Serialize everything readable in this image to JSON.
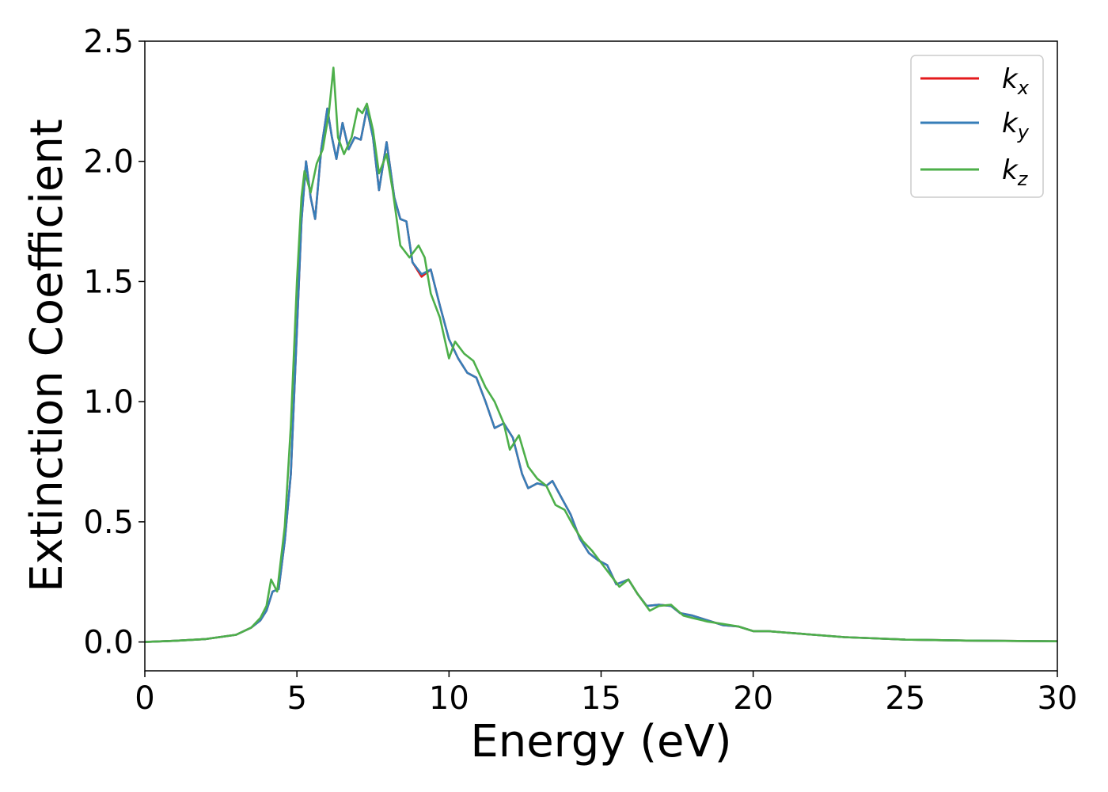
{
  "chart_data": {
    "type": "line",
    "xlabel": "Energy (eV)",
    "ylabel": "Extinction Coefficient",
    "xlim": [
      0,
      30
    ],
    "ylim": [
      -0.12,
      2.5
    ],
    "xticks": [
      0,
      5,
      10,
      15,
      20,
      25,
      30
    ],
    "xtick_labels": [
      "0",
      "5",
      "10",
      "15",
      "20",
      "25",
      "30"
    ],
    "yticks": [
      0.0,
      0.5,
      1.0,
      1.5,
      2.0,
      2.5
    ],
    "ytick_labels": [
      "0.0",
      "0.5",
      "1.0",
      "1.5",
      "2.0",
      "2.5"
    ],
    "grid": false,
    "legend_position": "top-right",
    "series": [
      {
        "name": "k_x",
        "label_main": "k",
        "label_sub": "x",
        "color": "#e41a1c",
        "points": [
          [
            0,
            0.0
          ],
          [
            1,
            0.005
          ],
          [
            2,
            0.012
          ],
          [
            3,
            0.03
          ],
          [
            3.5,
            0.06
          ],
          [
            3.8,
            0.09
          ],
          [
            4.0,
            0.13
          ],
          [
            4.2,
            0.21
          ],
          [
            4.4,
            0.22
          ],
          [
            4.6,
            0.42
          ],
          [
            4.8,
            0.7
          ],
          [
            5.0,
            1.3
          ],
          [
            5.15,
            1.75
          ],
          [
            5.3,
            2.0
          ],
          [
            5.45,
            1.85
          ],
          [
            5.6,
            1.76
          ],
          [
            5.8,
            2.05
          ],
          [
            6.0,
            2.22
          ],
          [
            6.15,
            2.1
          ],
          [
            6.3,
            2.01
          ],
          [
            6.5,
            2.16
          ],
          [
            6.7,
            2.05
          ],
          [
            6.9,
            2.1
          ],
          [
            7.1,
            2.09
          ],
          [
            7.3,
            2.22
          ],
          [
            7.5,
            2.1
          ],
          [
            7.7,
            1.88
          ],
          [
            7.95,
            2.08
          ],
          [
            8.2,
            1.85
          ],
          [
            8.4,
            1.76
          ],
          [
            8.6,
            1.75
          ],
          [
            8.8,
            1.58
          ],
          [
            9.1,
            1.52
          ],
          [
            9.4,
            1.55
          ],
          [
            9.7,
            1.4
          ],
          [
            10.0,
            1.26
          ],
          [
            10.3,
            1.18
          ],
          [
            10.6,
            1.12
          ],
          [
            10.9,
            1.1
          ],
          [
            11.2,
            1.0
          ],
          [
            11.5,
            0.89
          ],
          [
            11.8,
            0.91
          ],
          [
            12.1,
            0.85
          ],
          [
            12.4,
            0.7
          ],
          [
            12.6,
            0.64
          ],
          [
            12.9,
            0.66
          ],
          [
            13.2,
            0.65
          ],
          [
            13.4,
            0.67
          ],
          [
            13.7,
            0.6
          ],
          [
            14.0,
            0.53
          ],
          [
            14.3,
            0.43
          ],
          [
            14.6,
            0.37
          ],
          [
            14.9,
            0.34
          ],
          [
            15.2,
            0.32
          ],
          [
            15.5,
            0.24
          ],
          [
            15.9,
            0.26
          ],
          [
            16.2,
            0.2
          ],
          [
            16.5,
            0.15
          ],
          [
            16.9,
            0.155
          ],
          [
            17.3,
            0.15
          ],
          [
            17.6,
            0.12
          ],
          [
            18.0,
            0.11
          ],
          [
            18.5,
            0.09
          ],
          [
            19.0,
            0.07
          ],
          [
            19.5,
            0.065
          ],
          [
            20.0,
            0.045
          ],
          [
            20.5,
            0.045
          ],
          [
            21.0,
            0.04
          ],
          [
            22.0,
            0.03
          ],
          [
            23.0,
            0.02
          ],
          [
            24.0,
            0.015
          ],
          [
            25.0,
            0.01
          ],
          [
            27.0,
            0.006
          ],
          [
            30.0,
            0.003
          ]
        ]
      },
      {
        "name": "k_y",
        "label_main": "k",
        "label_sub": "y",
        "color": "#377eb8",
        "points": [
          [
            0,
            0.0
          ],
          [
            1,
            0.005
          ],
          [
            2,
            0.012
          ],
          [
            3,
            0.03
          ],
          [
            3.5,
            0.06
          ],
          [
            3.8,
            0.09
          ],
          [
            4.0,
            0.13
          ],
          [
            4.2,
            0.21
          ],
          [
            4.4,
            0.22
          ],
          [
            4.6,
            0.42
          ],
          [
            4.8,
            0.7
          ],
          [
            5.0,
            1.3
          ],
          [
            5.15,
            1.75
          ],
          [
            5.3,
            2.0
          ],
          [
            5.45,
            1.85
          ],
          [
            5.6,
            1.76
          ],
          [
            5.8,
            2.05
          ],
          [
            6.0,
            2.22
          ],
          [
            6.15,
            2.1
          ],
          [
            6.3,
            2.01
          ],
          [
            6.5,
            2.16
          ],
          [
            6.7,
            2.05
          ],
          [
            6.9,
            2.1
          ],
          [
            7.1,
            2.09
          ],
          [
            7.3,
            2.22
          ],
          [
            7.5,
            2.1
          ],
          [
            7.7,
            1.88
          ],
          [
            7.95,
            2.08
          ],
          [
            8.2,
            1.85
          ],
          [
            8.4,
            1.76
          ],
          [
            8.6,
            1.75
          ],
          [
            8.8,
            1.58
          ],
          [
            9.1,
            1.53
          ],
          [
            9.4,
            1.55
          ],
          [
            9.7,
            1.4
          ],
          [
            10.0,
            1.26
          ],
          [
            10.3,
            1.18
          ],
          [
            10.6,
            1.12
          ],
          [
            10.9,
            1.1
          ],
          [
            11.2,
            1.0
          ],
          [
            11.5,
            0.89
          ],
          [
            11.8,
            0.91
          ],
          [
            12.1,
            0.85
          ],
          [
            12.4,
            0.7
          ],
          [
            12.6,
            0.64
          ],
          [
            12.9,
            0.66
          ],
          [
            13.2,
            0.65
          ],
          [
            13.4,
            0.67
          ],
          [
            13.7,
            0.6
          ],
          [
            14.0,
            0.53
          ],
          [
            14.3,
            0.43
          ],
          [
            14.6,
            0.37
          ],
          [
            14.9,
            0.34
          ],
          [
            15.2,
            0.32
          ],
          [
            15.5,
            0.24
          ],
          [
            15.9,
            0.26
          ],
          [
            16.2,
            0.2
          ],
          [
            16.5,
            0.15
          ],
          [
            16.9,
            0.155
          ],
          [
            17.3,
            0.15
          ],
          [
            17.6,
            0.12
          ],
          [
            18.0,
            0.11
          ],
          [
            18.5,
            0.09
          ],
          [
            19.0,
            0.07
          ],
          [
            19.5,
            0.065
          ],
          [
            20.0,
            0.045
          ],
          [
            20.5,
            0.045
          ],
          [
            21.0,
            0.04
          ],
          [
            22.0,
            0.03
          ],
          [
            23.0,
            0.02
          ],
          [
            24.0,
            0.015
          ],
          [
            25.0,
            0.01
          ],
          [
            27.0,
            0.006
          ],
          [
            30.0,
            0.003
          ]
        ]
      },
      {
        "name": "k_z",
        "label_main": "k",
        "label_sub": "z",
        "color": "#4daf4a",
        "points": [
          [
            0,
            0.0
          ],
          [
            1,
            0.005
          ],
          [
            2,
            0.012
          ],
          [
            3,
            0.03
          ],
          [
            3.5,
            0.06
          ],
          [
            3.8,
            0.1
          ],
          [
            4.0,
            0.15
          ],
          [
            4.15,
            0.26
          ],
          [
            4.35,
            0.21
          ],
          [
            4.6,
            0.48
          ],
          [
            4.8,
            0.9
          ],
          [
            5.0,
            1.5
          ],
          [
            5.15,
            1.85
          ],
          [
            5.25,
            1.96
          ],
          [
            5.45,
            1.87
          ],
          [
            5.65,
            1.99
          ],
          [
            5.85,
            2.05
          ],
          [
            6.05,
            2.2
          ],
          [
            6.2,
            2.39
          ],
          [
            6.35,
            2.1
          ],
          [
            6.55,
            2.03
          ],
          [
            6.8,
            2.1
          ],
          [
            7.0,
            2.22
          ],
          [
            7.15,
            2.2
          ],
          [
            7.3,
            2.24
          ],
          [
            7.5,
            2.13
          ],
          [
            7.7,
            1.95
          ],
          [
            7.95,
            2.03
          ],
          [
            8.15,
            1.88
          ],
          [
            8.4,
            1.65
          ],
          [
            8.7,
            1.6
          ],
          [
            9.0,
            1.65
          ],
          [
            9.2,
            1.6
          ],
          [
            9.4,
            1.45
          ],
          [
            9.7,
            1.35
          ],
          [
            10.0,
            1.18
          ],
          [
            10.2,
            1.25
          ],
          [
            10.5,
            1.2
          ],
          [
            10.8,
            1.17
          ],
          [
            11.2,
            1.06
          ],
          [
            11.5,
            1.0
          ],
          [
            11.8,
            0.91
          ],
          [
            12.0,
            0.8
          ],
          [
            12.3,
            0.86
          ],
          [
            12.6,
            0.73
          ],
          [
            12.9,
            0.68
          ],
          [
            13.2,
            0.65
          ],
          [
            13.5,
            0.57
          ],
          [
            13.8,
            0.55
          ],
          [
            14.1,
            0.48
          ],
          [
            14.4,
            0.42
          ],
          [
            14.7,
            0.38
          ],
          [
            15.0,
            0.33
          ],
          [
            15.3,
            0.28
          ],
          [
            15.6,
            0.23
          ],
          [
            15.9,
            0.26
          ],
          [
            16.2,
            0.2
          ],
          [
            16.6,
            0.13
          ],
          [
            16.9,
            0.15
          ],
          [
            17.3,
            0.155
          ],
          [
            17.7,
            0.11
          ],
          [
            18.0,
            0.1
          ],
          [
            18.5,
            0.085
          ],
          [
            19.0,
            0.075
          ],
          [
            19.5,
            0.065
          ],
          [
            20.0,
            0.045
          ],
          [
            20.5,
            0.045
          ],
          [
            21.0,
            0.04
          ],
          [
            22.0,
            0.03
          ],
          [
            23.0,
            0.02
          ],
          [
            24.0,
            0.015
          ],
          [
            25.0,
            0.01
          ],
          [
            27.0,
            0.006
          ],
          [
            30.0,
            0.003
          ]
        ]
      }
    ]
  }
}
